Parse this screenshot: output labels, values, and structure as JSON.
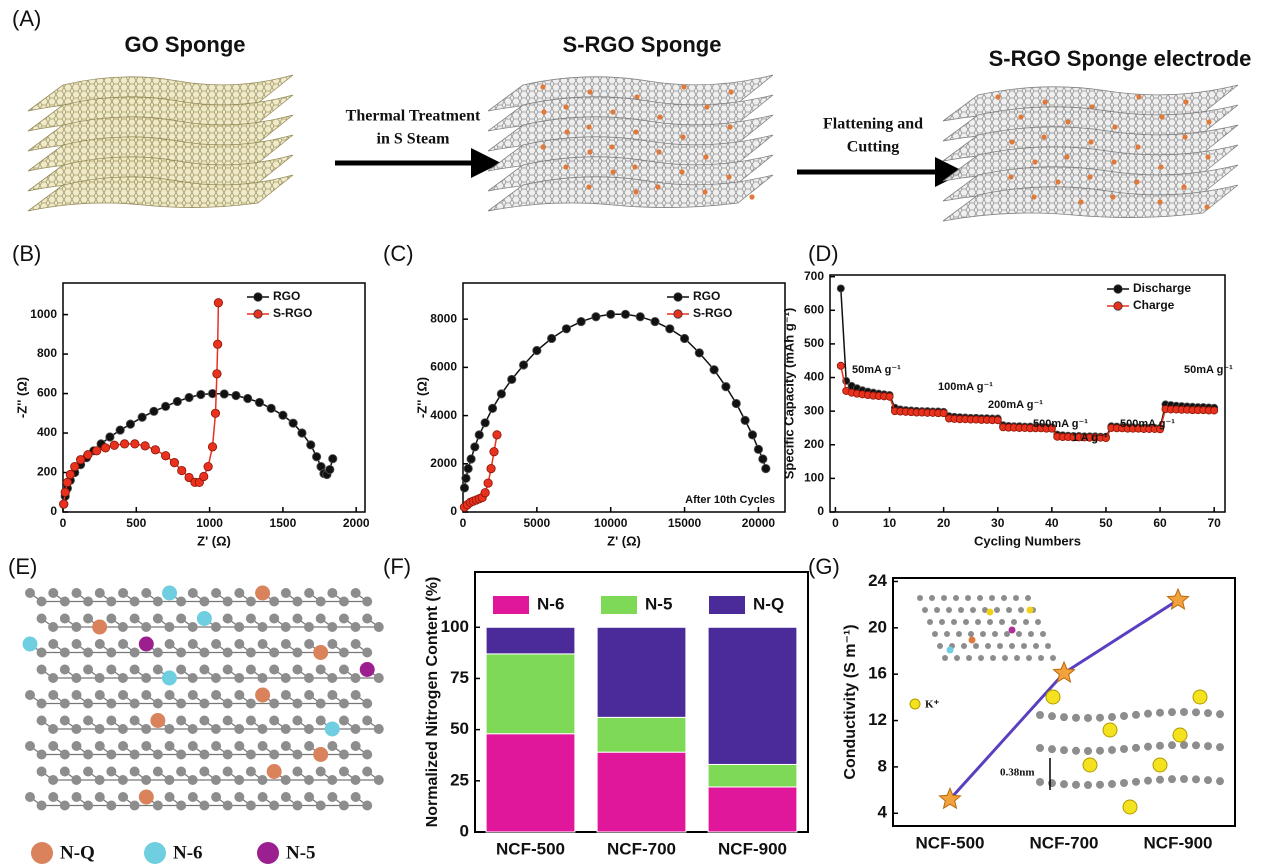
{
  "schematic": {
    "panel": "(A)",
    "stages": [
      "GO Sponge",
      "S-RGO Sponge",
      "S-RGO Sponge electrode"
    ],
    "steps": [
      [
        "Thermal Treatment",
        "in S Steam"
      ],
      [
        "Flattening and",
        "Cutting"
      ]
    ]
  },
  "chart_data": [
    {
      "panel": "(B)",
      "type": "line",
      "xlabel": "Z' (Ω)",
      "ylabel": "-Z'' (Ω)",
      "xlim": [
        0,
        2060
      ],
      "ylim": [
        0,
        1160
      ],
      "xticks": [
        0,
        500,
        1000,
        1500,
        2000
      ],
      "yticks": [
        0,
        200,
        400,
        600,
        800,
        1000
      ],
      "legend": "upper right",
      "series": [
        {
          "name": "RGO",
          "color": "#111111",
          "x": [
            5,
            15,
            30,
            50,
            80,
            120,
            160,
            210,
            260,
            320,
            390,
            460,
            540,
            620,
            700,
            780,
            860,
            940,
            1020,
            1100,
            1180,
            1260,
            1340,
            1420,
            1500,
            1570,
            1630,
            1690,
            1730,
            1760,
            1780,
            1800,
            1820,
            1840
          ],
          "values": [
            40,
            80,
            120,
            160,
            200,
            240,
            275,
            310,
            345,
            380,
            415,
            445,
            480,
            510,
            535,
            560,
            580,
            595,
            600,
            598,
            590,
            575,
            555,
            525,
            490,
            450,
            400,
            340,
            280,
            230,
            195,
            190,
            215,
            270
          ]
        },
        {
          "name": "S-RGO",
          "color": "#e8321e",
          "x": [
            5,
            15,
            30,
            50,
            80,
            120,
            170,
            230,
            290,
            350,
            420,
            490,
            560,
            630,
            700,
            760,
            810,
            860,
            900,
            930,
            960,
            990,
            1020,
            1040,
            1050,
            1055,
            1060
          ],
          "values": [
            40,
            100,
            150,
            190,
            230,
            265,
            290,
            310,
            325,
            338,
            345,
            345,
            335,
            315,
            285,
            250,
            210,
            175,
            150,
            150,
            180,
            230,
            330,
            500,
            700,
            850,
            1060
          ]
        }
      ]
    },
    {
      "panel": "(C)",
      "type": "line",
      "xlabel": "Z' (Ω)",
      "ylabel": "-Z'' (Ω)",
      "xlim": [
        0,
        21800
      ],
      "ylim": [
        0,
        9500
      ],
      "xticks": [
        0,
        5000,
        10000,
        15000,
        20000
      ],
      "yticks": [
        0,
        2000,
        4000,
        6000,
        8000
      ],
      "legend": "upper right",
      "annotation": "After 10th Cycles",
      "series": [
        {
          "name": "RGO",
          "color": "#111111",
          "x": [
            100,
            200,
            350,
            550,
            800,
            1100,
            1500,
            2000,
            2600,
            3300,
            4100,
            5000,
            6000,
            7000,
            8000,
            9000,
            10000,
            11000,
            12000,
            13000,
            14000,
            15000,
            16000,
            17000,
            17800,
            18500,
            19100,
            19600,
            20000,
            20300,
            20500
          ],
          "values": [
            1000,
            1400,
            1800,
            2200,
            2700,
            3200,
            3700,
            4300,
            4900,
            5500,
            6100,
            6700,
            7200,
            7600,
            7900,
            8100,
            8200,
            8200,
            8100,
            7900,
            7600,
            7200,
            6600,
            5900,
            5200,
            4500,
            3800,
            3200,
            2600,
            2200,
            1800
          ]
        },
        {
          "name": "S-RGO",
          "color": "#e8321e",
          "x": [
            100,
            300,
            500,
            700,
            900,
            1100,
            1300,
            1500,
            1700,
            1900,
            2100,
            2300
          ],
          "values": [
            200,
            300,
            400,
            450,
            500,
            550,
            600,
            800,
            1200,
            1800,
            2500,
            3200
          ]
        }
      ]
    },
    {
      "panel": "(D)",
      "type": "line",
      "xlabel": "Cycling Numbers",
      "ylabel": "Specific Capacity (mAh g⁻¹)",
      "xlim": [
        -1,
        72
      ],
      "ylim": [
        0,
        705
      ],
      "xticks": [
        0,
        10,
        20,
        30,
        40,
        50,
        60,
        70
      ],
      "yticks": [
        0,
        100,
        200,
        300,
        400,
        500,
        600,
        700
      ],
      "legend": "upper right",
      "annotations": [
        "50mA g⁻¹",
        "100mA g⁻¹",
        "200mA g⁻¹",
        "500mA g⁻¹",
        "1 A g⁻¹",
        "500mA g⁻¹",
        "50mA g⁻¹"
      ],
      "x": [
        1,
        2,
        3,
        4,
        5,
        6,
        7,
        8,
        9,
        10,
        11,
        12,
        13,
        14,
        15,
        16,
        17,
        18,
        19,
        20,
        21,
        22,
        23,
        24,
        25,
        26,
        27,
        28,
        29,
        30,
        31,
        32,
        33,
        34,
        35,
        36,
        37,
        38,
        39,
        40,
        41,
        42,
        43,
        44,
        45,
        46,
        47,
        48,
        49,
        50,
        51,
        52,
        53,
        54,
        55,
        56,
        57,
        58,
        59,
        60,
        61,
        62,
        63,
        64,
        65,
        66,
        67,
        68,
        69,
        70
      ],
      "series": [
        {
          "name": "Discharge",
          "color": "#111111",
          "values": [
            665,
            390,
            375,
            368,
            362,
            358,
            355,
            352,
            350,
            348,
            310,
            305,
            303,
            302,
            301,
            300,
            300,
            299,
            299,
            298,
            285,
            283,
            282,
            281,
            280,
            280,
            279,
            279,
            278,
            278,
            258,
            256,
            255,
            255,
            254,
            254,
            253,
            253,
            252,
            252,
            230,
            228,
            227,
            226,
            226,
            225,
            225,
            225,
            224,
            224,
            255,
            254,
            253,
            252,
            252,
            251,
            251,
            250,
            250,
            250,
            320,
            318,
            316,
            315,
            314,
            313,
            312,
            312,
            311,
            310
          ]
        },
        {
          "name": "Charge",
          "color": "#e8321e",
          "values": [
            435,
            360,
            355,
            352,
            350,
            348,
            346,
            345,
            344,
            343,
            300,
            299,
            298,
            297,
            296,
            296,
            295,
            295,
            294,
            294,
            278,
            277,
            276,
            276,
            275,
            275,
            274,
            274,
            273,
            273,
            252,
            251,
            251,
            250,
            250,
            249,
            249,
            249,
            248,
            248,
            224,
            223,
            223,
            222,
            222,
            222,
            221,
            221,
            221,
            220,
            250,
            249,
            249,
            248,
            248,
            248,
            247,
            247,
            247,
            246,
            306,
            305,
            305,
            304,
            304,
            303,
            303,
            303,
            302,
            302
          ]
        }
      ]
    },
    {
      "panel": "(F)",
      "type": "stacked-bar",
      "ylabel": "Normalized Nitrogen Content (%)",
      "categories": [
        "NCF-500",
        "NCF-700",
        "NCF-900"
      ],
      "ylim": [
        0,
        127
      ],
      "yticks": [
        0,
        25,
        50,
        75,
        100
      ],
      "legend": "top",
      "series": [
        {
          "name": "N-6",
          "color": "#e0169b",
          "values": [
            48,
            39,
            22
          ]
        },
        {
          "name": "N-5",
          "color": "#7ed957",
          "values": [
            39,
            17,
            11
          ]
        },
        {
          "name": "N-Q",
          "color": "#4b2a99",
          "values": [
            13,
            44,
            67
          ]
        }
      ]
    },
    {
      "panel": "(G)",
      "type": "line",
      "ylabel": "Conductivity (S m⁻¹)",
      "categories": [
        "NCF-500",
        "NCF-700",
        "NCF-900"
      ],
      "ylim": [
        2.9,
        24.3
      ],
      "yticks": [
        4,
        8,
        12,
        16,
        20,
        24
      ],
      "marker": "star",
      "inset_labels": [
        "K⁺",
        "0.38nm"
      ],
      "series": [
        {
          "color": "#5a3fc0",
          "marker_color": "#f2a23a",
          "values": [
            5.2,
            16.1,
            22.4
          ]
        }
      ]
    }
  ],
  "diagram": {
    "panel": "(E)",
    "legend": [
      {
        "label": "N-Q",
        "color": "#d9825b"
      },
      {
        "label": "N-6",
        "color": "#6fcfe0"
      },
      {
        "label": "N-5",
        "color": "#9c1f8f"
      }
    ]
  }
}
